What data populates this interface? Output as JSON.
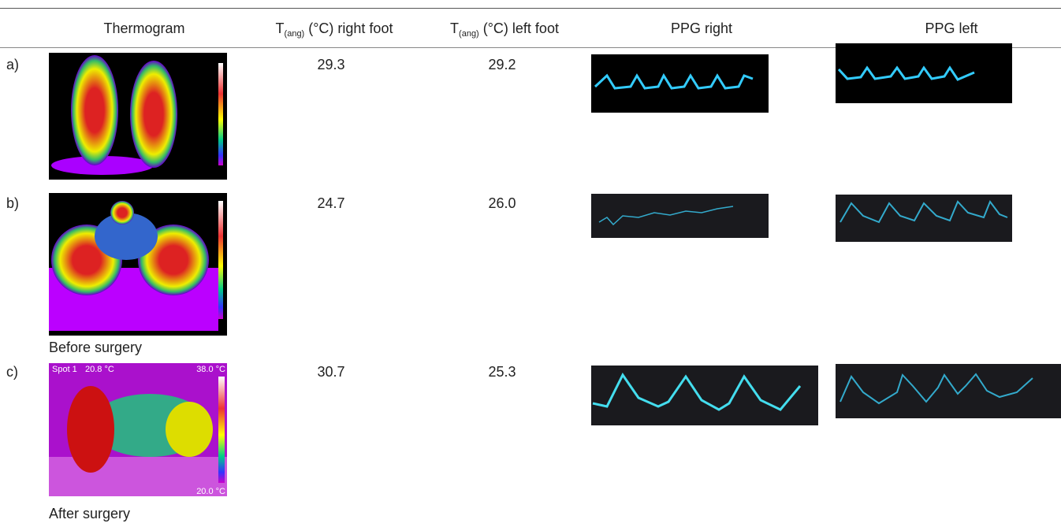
{
  "header": {
    "thermogram": "Thermogram",
    "right_foot": {
      "symbol": "T",
      "subscript": "(ang)",
      "label": "(°C) right foot"
    },
    "left_foot": {
      "symbol": "T",
      "subscript": "(ang)",
      "label": "(°C) left foot"
    },
    "ppg_right": "PPG right",
    "ppg_left": "PPG left"
  },
  "rows": [
    {
      "label": "a)",
      "right": "29.3",
      "left": "29.2"
    },
    {
      "label": "b)",
      "right": "24.7",
      "left": "26.0",
      "caption": "Before surgery"
    },
    {
      "label": "c)",
      "right": "30.7",
      "left": "25.3",
      "caption": "After surgery",
      "overlay": {
        "spot": "Spot 1",
        "spot_temp": "20.8 °C",
        "max": "38.0 °C",
        "min": "20.0 °C"
      }
    }
  ]
}
